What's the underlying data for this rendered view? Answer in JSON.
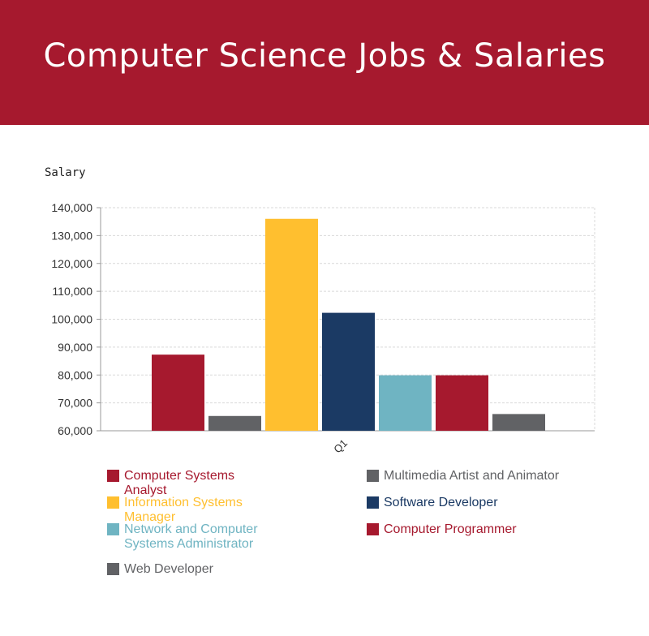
{
  "header": {
    "title": "Computer Science Jobs & Salaries"
  },
  "chart_data": {
    "type": "bar",
    "title": "Computer Science Jobs & Salaries",
    "ylabel": "Salary",
    "xlabel": "",
    "categories": [
      "Q1"
    ],
    "ylim": [
      60000,
      140000
    ],
    "yticks": [
      "60,000",
      "70,000",
      "80,000",
      "90,000",
      "100,000",
      "110,000",
      "120,000",
      "130,000",
      "140,000"
    ],
    "grid": true,
    "legend_position": "bottom",
    "series": [
      {
        "name": "Computer Systems Analyst",
        "values": [
          87300
        ],
        "color": "#a6192e"
      },
      {
        "name": "Multimedia Artist and Animator",
        "values": [
          65300
        ],
        "color": "#616265"
      },
      {
        "name": "Information Systems Manager",
        "values": [
          136000
        ],
        "color": "#ffbf2f"
      },
      {
        "name": "Software Developer",
        "values": [
          102300
        ],
        "color": "#1b3a64"
      },
      {
        "name": "Network and Computer Systems Administrator",
        "values": [
          79900
        ],
        "color": "#6fb4c2"
      },
      {
        "name": "Computer Programmer",
        "values": [
          79900
        ],
        "color": "#a6192e"
      },
      {
        "name": "Web Developer",
        "values": [
          66000
        ],
        "color": "#616265"
      }
    ]
  }
}
